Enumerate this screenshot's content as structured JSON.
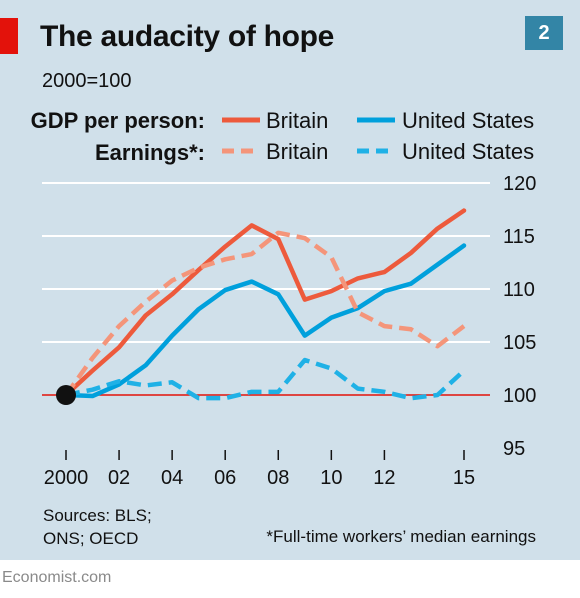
{
  "header": {
    "title": "The audacity of hope",
    "chart_number": "2",
    "subtitle": "2000=100"
  },
  "legend": {
    "row1_heading": "GDP per person:",
    "row2_heading": "Earnings*:",
    "items": [
      {
        "label": "Britain",
        "row": 1,
        "color": "#ed5a3c",
        "style": "solid"
      },
      {
        "label": "United States",
        "row": 1,
        "color": "#00a0dc",
        "style": "solid"
      },
      {
        "label": "Britain",
        "row": 2,
        "color": "#f4957a",
        "style": "dashed"
      },
      {
        "label": "United States",
        "row": 2,
        "color": "#1fb1e6",
        "style": "dashed"
      }
    ]
  },
  "footer": {
    "sources": "Sources: BLS;\nONS; OECD",
    "footnote": "*Full-time workers’ median earnings",
    "credit": "Economist.com"
  },
  "chart_data": {
    "type": "line",
    "x": [
      2000,
      2001,
      2002,
      2003,
      2004,
      2005,
      2006,
      2007,
      2008,
      2009,
      2010,
      2011,
      2012,
      2013,
      2014,
      2015
    ],
    "x_tick_values": [
      2000,
      2002,
      2004,
      2006,
      2008,
      2010,
      2012,
      2015
    ],
    "x_tick_labels": [
      "2000",
      "02",
      "04",
      "06",
      "08",
      "10",
      "12",
      "15"
    ],
    "xlim": [
      1999,
      2016
    ],
    "ylim": [
      95,
      120
    ],
    "y_ticks": [
      95,
      100,
      105,
      110,
      115,
      120
    ],
    "baseline": 100,
    "baseline_color": "#e3120b",
    "y_axis_position": "right",
    "grid": true,
    "series": [
      {
        "name": "GDP per person: Britain",
        "color": "#ed5a3c",
        "style": "solid",
        "values": [
          100,
          102.3,
          104.5,
          107.5,
          109.5,
          111.8,
          114.0,
          116.0,
          114.7,
          109.0,
          109.8,
          111.0,
          111.6,
          113.4,
          115.7,
          117.4
        ]
      },
      {
        "name": "GDP per person: United States",
        "color": "#00a0dc",
        "style": "solid",
        "values": [
          100,
          99.9,
          101.0,
          102.8,
          105.6,
          108.1,
          109.9,
          110.7,
          109.5,
          105.6,
          107.3,
          108.2,
          109.8,
          110.5,
          112.3,
          114.1
        ]
      },
      {
        "name": "Earnings: Britain",
        "color": "#f4957a",
        "style": "dashed",
        "values": [
          100,
          103.5,
          106.5,
          108.8,
          110.8,
          112.0,
          112.8,
          113.3,
          115.3,
          114.8,
          113.0,
          107.8,
          106.5,
          106.2,
          104.6,
          106.5
        ]
      },
      {
        "name": "Earnings: United States",
        "color": "#1fb1e6",
        "style": "dashed",
        "values": [
          100,
          100.5,
          101.3,
          100.9,
          101.2,
          99.7,
          99.7,
          100.3,
          100.3,
          103.3,
          102.5,
          100.6,
          100.3,
          99.7,
          100.0,
          102.3
        ]
      }
    ]
  }
}
